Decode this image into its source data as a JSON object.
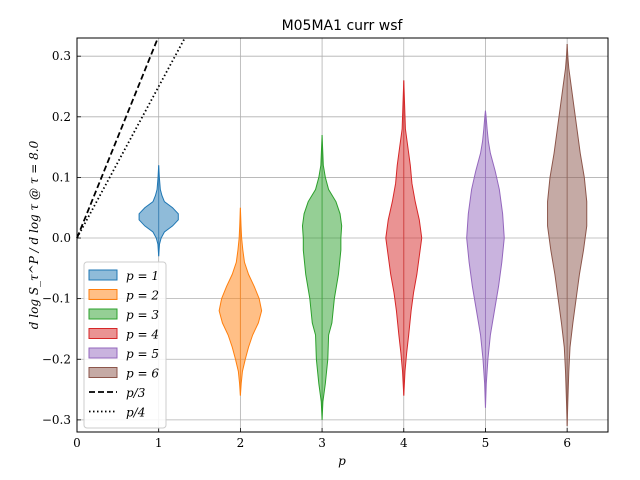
{
  "chart_data": {
    "type": "violin",
    "title": "M05MA1 curr wsf",
    "xlabel": "p",
    "ylabel": "d log S_τ^P / d log τ @ τ = 8.0",
    "xlim": [
      0,
      6.5
    ],
    "ylim": [
      -0.32,
      0.33
    ],
    "xticks": [
      "0",
      "1",
      "2",
      "3",
      "4",
      "5",
      "6"
    ],
    "yticks": [
      "−0.3",
      "−0.2",
      "−0.1",
      "0.0",
      "0.1",
      "0.2",
      "0.3"
    ],
    "grid": true,
    "legend_position": "lower-left",
    "series": [
      {
        "name": "p = 1",
        "position": 1,
        "color": "#1f77b4",
        "profile": [
          [
            -0.03,
            0.0
          ],
          [
            -0.02,
            0.005
          ],
          [
            -0.01,
            0.01
          ],
          [
            0.0,
            0.03
          ],
          [
            0.01,
            0.07
          ],
          [
            0.02,
            0.17
          ],
          [
            0.03,
            0.24
          ],
          [
            0.04,
            0.24
          ],
          [
            0.05,
            0.17
          ],
          [
            0.06,
            0.07
          ],
          [
            0.07,
            0.04
          ],
          [
            0.08,
            0.02
          ],
          [
            0.1,
            0.008
          ],
          [
            0.12,
            0.0
          ]
        ]
      },
      {
        "name": "p = 2",
        "position": 2,
        "color": "#ff7f0e",
        "profile": [
          [
            -0.26,
            0.0
          ],
          [
            -0.24,
            0.01
          ],
          [
            -0.22,
            0.025
          ],
          [
            -0.2,
            0.06
          ],
          [
            -0.18,
            0.1
          ],
          [
            -0.16,
            0.15
          ],
          [
            -0.14,
            0.22
          ],
          [
            -0.12,
            0.26
          ],
          [
            -0.1,
            0.23
          ],
          [
            -0.08,
            0.17
          ],
          [
            -0.06,
            0.1
          ],
          [
            -0.04,
            0.05
          ],
          [
            -0.02,
            0.03
          ],
          [
            0.0,
            0.015
          ],
          [
            0.02,
            0.008
          ],
          [
            0.05,
            0.0
          ]
        ]
      },
      {
        "name": "p = 3",
        "position": 3,
        "color": "#2ca02c",
        "profile": [
          [
            -0.3,
            0.0
          ],
          [
            -0.27,
            0.01
          ],
          [
            -0.24,
            0.04
          ],
          [
            -0.2,
            0.07
          ],
          [
            -0.16,
            0.08
          ],
          [
            -0.14,
            0.12
          ],
          [
            -0.1,
            0.15
          ],
          [
            -0.06,
            0.2
          ],
          [
            -0.02,
            0.23
          ],
          [
            0.0,
            0.23
          ],
          [
            0.02,
            0.24
          ],
          [
            0.04,
            0.22
          ],
          [
            0.06,
            0.17
          ],
          [
            0.08,
            0.08
          ],
          [
            0.1,
            0.04
          ],
          [
            0.12,
            0.015
          ],
          [
            0.15,
            0.006
          ],
          [
            0.17,
            0.0
          ]
        ]
      },
      {
        "name": "p = 4",
        "position": 4,
        "color": "#d62728",
        "profile": [
          [
            -0.26,
            0.0
          ],
          [
            -0.22,
            0.015
          ],
          [
            -0.19,
            0.035
          ],
          [
            -0.16,
            0.06
          ],
          [
            -0.12,
            0.09
          ],
          [
            -0.09,
            0.12
          ],
          [
            -0.06,
            0.16
          ],
          [
            -0.03,
            0.19
          ],
          [
            0.0,
            0.22
          ],
          [
            0.03,
            0.19
          ],
          [
            0.06,
            0.14
          ],
          [
            0.09,
            0.1
          ],
          [
            0.12,
            0.08
          ],
          [
            0.15,
            0.05
          ],
          [
            0.18,
            0.02
          ],
          [
            0.22,
            0.01
          ],
          [
            0.26,
            0.0
          ]
        ]
      },
      {
        "name": "p = 5",
        "position": 5,
        "color": "#9467bd",
        "profile": [
          [
            -0.28,
            0.0
          ],
          [
            -0.24,
            0.01
          ],
          [
            -0.2,
            0.03
          ],
          [
            -0.16,
            0.06
          ],
          [
            -0.12,
            0.11
          ],
          [
            -0.08,
            0.16
          ],
          [
            -0.04,
            0.2
          ],
          [
            0.0,
            0.23
          ],
          [
            0.04,
            0.21
          ],
          [
            0.08,
            0.17
          ],
          [
            0.11,
            0.12
          ],
          [
            0.14,
            0.06
          ],
          [
            0.16,
            0.035
          ],
          [
            0.18,
            0.02
          ],
          [
            0.2,
            0.008
          ],
          [
            0.21,
            0.0
          ]
        ]
      },
      {
        "name": "p = 6",
        "position": 6,
        "color": "#8c564b",
        "profile": [
          [
            -0.31,
            0.0
          ],
          [
            -0.27,
            0.008
          ],
          [
            -0.22,
            0.02
          ],
          [
            -0.18,
            0.035
          ],
          [
            -0.14,
            0.07
          ],
          [
            -0.1,
            0.11
          ],
          [
            -0.06,
            0.15
          ],
          [
            -0.02,
            0.2
          ],
          [
            0.02,
            0.24
          ],
          [
            0.06,
            0.24
          ],
          [
            0.1,
            0.21
          ],
          [
            0.14,
            0.16
          ],
          [
            0.18,
            0.12
          ],
          [
            0.22,
            0.08
          ],
          [
            0.25,
            0.05
          ],
          [
            0.28,
            0.02
          ],
          [
            0.3,
            0.008
          ],
          [
            0.32,
            0.0
          ]
        ]
      }
    ],
    "reference_lines": [
      {
        "name": "p/3",
        "style": "dashed",
        "slope": 0.3333
      },
      {
        "name": "p/4",
        "style": "dotted",
        "slope": 0.25
      }
    ]
  }
}
